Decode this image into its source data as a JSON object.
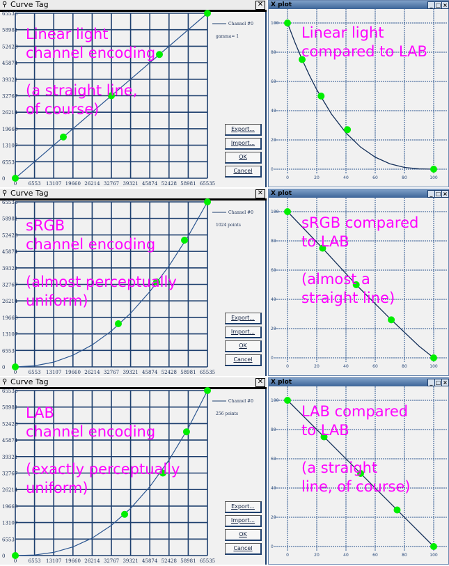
{
  "colors": {
    "overlay_text": "#ff00ff",
    "marker": "#00ee00",
    "grid": "#1d3f6e",
    "curve": "#1d3f6e"
  },
  "rows": [
    {
      "curve_tag": {
        "title": "Curve Tag",
        "pin_icon": "pin-icon",
        "close_icon": "close-icon",
        "legend_series": "Channel #0",
        "legend_info": "gamma=  1",
        "buttons": [
          "Export...",
          "Import...",
          "OK",
          "Cancel"
        ],
        "overlay": [
          "Linear light",
          "channel encoding",
          "",
          "(a straight line,",
          "of course)"
        ]
      },
      "plot": {
        "title": "X plot",
        "window_buttons": [
          "_",
          "□",
          "×"
        ],
        "overlay": [
          "Linear light",
          "compared to LAB"
        ]
      }
    },
    {
      "curve_tag": {
        "title": "Curve Tag",
        "legend_series": "Channel #0",
        "legend_info": "1024 points",
        "buttons": [
          "Export...",
          "Import...",
          "OK",
          "Cancel"
        ],
        "overlay": [
          "sRGB",
          "channel encoding",
          "",
          "(almost perceptually",
          "uniform)"
        ]
      },
      "plot": {
        "title": "X plot",
        "window_buttons": [
          "_",
          "□",
          "×"
        ],
        "overlay": [
          "sRGB compared",
          "to LAB",
          "",
          "(almost a",
          "straight line)"
        ]
      }
    },
    {
      "curve_tag": {
        "title": "Curve Tag",
        "legend_series": "Channel #0",
        "legend_info": "256 points",
        "buttons": [
          "Export...",
          "Import...",
          "OK",
          "Cancel"
        ],
        "overlay": [
          "LAB",
          "channel encoding",
          "",
          "(exactly perceptually",
          "uniform)"
        ]
      },
      "plot": {
        "title": "X plot",
        "window_buttons": [
          "_",
          "□",
          "×"
        ],
        "overlay": [
          "LAB compared",
          "to LAB",
          "",
          "(a straight",
          "line, of course)"
        ]
      }
    }
  ],
  "chart_data": [
    {
      "type": "line",
      "panel": "curve-tag-linear",
      "xlim": [
        0,
        65535
      ],
      "ylim": [
        0,
        65535
      ],
      "grid": true,
      "xticks": [
        "0",
        "6553",
        "13107",
        "19660",
        "26214",
        "32767",
        "39321",
        "45874",
        "52428",
        "58981",
        "65535"
      ],
      "yticks": [
        "0",
        "6553",
        "13107",
        "19660",
        "26214",
        "32767",
        "39321",
        "45874",
        "52428",
        "58981",
        "65535"
      ],
      "curve": [
        [
          0,
          0
        ],
        [
          65535,
          65535
        ]
      ],
      "markers": [
        [
          0,
          0
        ],
        [
          16384,
          16384
        ],
        [
          32768,
          32768
        ],
        [
          49152,
          49152
        ],
        [
          65535,
          65535
        ]
      ]
    },
    {
      "type": "line",
      "panel": "xplot-linear",
      "xlim": [
        0,
        100
      ],
      "ylim": [
        0,
        100
      ],
      "grid": true,
      "xticks": [
        "0",
        "20",
        "40",
        "60",
        "80",
        "100"
      ],
      "yticks": [
        "0",
        "20",
        "40",
        "60",
        "80",
        "100"
      ],
      "curve": [
        [
          0,
          100
        ],
        [
          5,
          86.9
        ],
        [
          10,
          75
        ],
        [
          15,
          64.2
        ],
        [
          20,
          54.4
        ],
        [
          30,
          37.8
        ],
        [
          40,
          24.8
        ],
        [
          50,
          15.1
        ],
        [
          60,
          8.2
        ],
        [
          70,
          3.7
        ],
        [
          80,
          1.2
        ],
        [
          90,
          0.2
        ],
        [
          100,
          0
        ]
      ],
      "markers": [
        [
          0,
          100
        ],
        [
          10,
          75
        ],
        [
          23,
          50
        ],
        [
          41,
          27
        ],
        [
          100,
          0
        ]
      ]
    },
    {
      "type": "line",
      "panel": "curve-tag-srgb",
      "xlim": [
        0,
        65535
      ],
      "ylim": [
        0,
        65535
      ],
      "grid": true,
      "xticks": [
        "0",
        "6553",
        "13107",
        "19660",
        "26214",
        "32767",
        "39321",
        "45874",
        "52428",
        "58981",
        "65535"
      ],
      "yticks": [
        "0",
        "6553",
        "13107",
        "19660",
        "26214",
        "32767",
        "39321",
        "45874",
        "52428",
        "58981",
        "65535"
      ],
      "curve": [
        [
          0,
          0
        ],
        [
          6554,
          413
        ],
        [
          13107,
          1900
        ],
        [
          19661,
          4640
        ],
        [
          26214,
          8729
        ],
        [
          32768,
          14261
        ],
        [
          39321,
          21299
        ],
        [
          45875,
          29897
        ],
        [
          52428,
          40113
        ],
        [
          58982,
          51982
        ],
        [
          65535,
          65535
        ]
      ],
      "markers": [
        [
          0,
          0
        ],
        [
          35140,
          17145
        ],
        [
          48200,
          33740
        ],
        [
          57700,
          50330
        ],
        [
          65535,
          65535
        ]
      ]
    },
    {
      "type": "line",
      "panel": "xplot-srgb",
      "xlim": [
        0,
        100
      ],
      "ylim": [
        0,
        100
      ],
      "grid": true,
      "xticks": [
        "0",
        "20",
        "40",
        "60",
        "80",
        "100"
      ],
      "yticks": [
        "0",
        "20",
        "40",
        "60",
        "80",
        "100"
      ],
      "curve": [
        [
          0,
          100
        ],
        [
          24,
          75
        ],
        [
          47,
          50
        ],
        [
          71,
          26
        ],
        [
          90,
          8
        ],
        [
          100,
          0
        ]
      ],
      "markers": [
        [
          0,
          100
        ],
        [
          24,
          75
        ],
        [
          47,
          50
        ],
        [
          71,
          26
        ],
        [
          100,
          0
        ]
      ]
    },
    {
      "type": "line",
      "panel": "curve-tag-lab",
      "xlim": [
        0,
        65535
      ],
      "ylim": [
        0,
        65535
      ],
      "grid": true,
      "xticks": [
        "0",
        "6553",
        "13107",
        "19660",
        "26214",
        "32767",
        "39321",
        "45874",
        "52428",
        "58981",
        "65535"
      ],
      "yticks": [
        "0",
        "6553",
        "13107",
        "19660",
        "26214",
        "32767",
        "39321",
        "45874",
        "52428",
        "58981",
        "65535"
      ],
      "curve": [
        [
          0,
          0
        ],
        [
          6554,
          231
        ],
        [
          13107,
          1271
        ],
        [
          19661,
          3434
        ],
        [
          26214,
          6940
        ],
        [
          32768,
          11993
        ],
        [
          39321,
          18730
        ],
        [
          45875,
          27361
        ],
        [
          52428,
          37945
        ],
        [
          58982,
          50632
        ],
        [
          65535,
          65535
        ]
      ],
      "markers": [
        [
          0,
          0
        ],
        [
          37290,
          16384
        ],
        [
          50330,
          32768
        ],
        [
          58390,
          49152
        ],
        [
          65535,
          65535
        ]
      ]
    },
    {
      "type": "line",
      "panel": "xplot-lab",
      "xlim": [
        0,
        100
      ],
      "ylim": [
        0,
        100
      ],
      "grid": true,
      "xticks": [
        "0",
        "20",
        "40",
        "60",
        "80",
        "100"
      ],
      "yticks": [
        "0",
        "20",
        "40",
        "60",
        "80",
        "100"
      ],
      "curve": [
        [
          0,
          100
        ],
        [
          100,
          0
        ]
      ],
      "markers": [
        [
          0,
          100
        ],
        [
          25,
          75
        ],
        [
          50,
          50
        ],
        [
          75,
          25
        ],
        [
          100,
          0
        ]
      ]
    }
  ]
}
